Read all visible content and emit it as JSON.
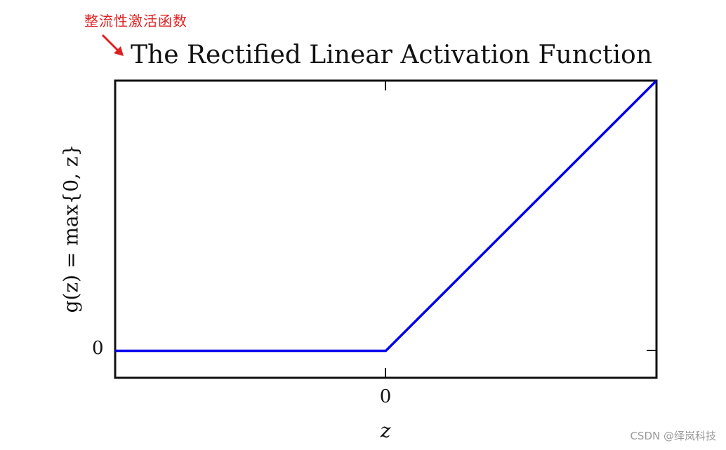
{
  "annotation": {
    "text": "整流性激活函数",
    "color": "#e02020"
  },
  "watermark": "CSDN @绎岚科技",
  "chart_data": {
    "type": "line",
    "title": "The Rectified Linear Activation Function",
    "xlabel": "z",
    "ylabel": "g(z) = max{0, z}",
    "x_ticks": [
      "0"
    ],
    "y_ticks": [
      "0"
    ],
    "xlim": [
      -1,
      1
    ],
    "ylim": [
      -0.1,
      1
    ],
    "grid": false,
    "series": [
      {
        "color": "#0000ee",
        "x": [
          -1,
          0,
          1
        ],
        "y": [
          0,
          0,
          1
        ]
      }
    ]
  }
}
